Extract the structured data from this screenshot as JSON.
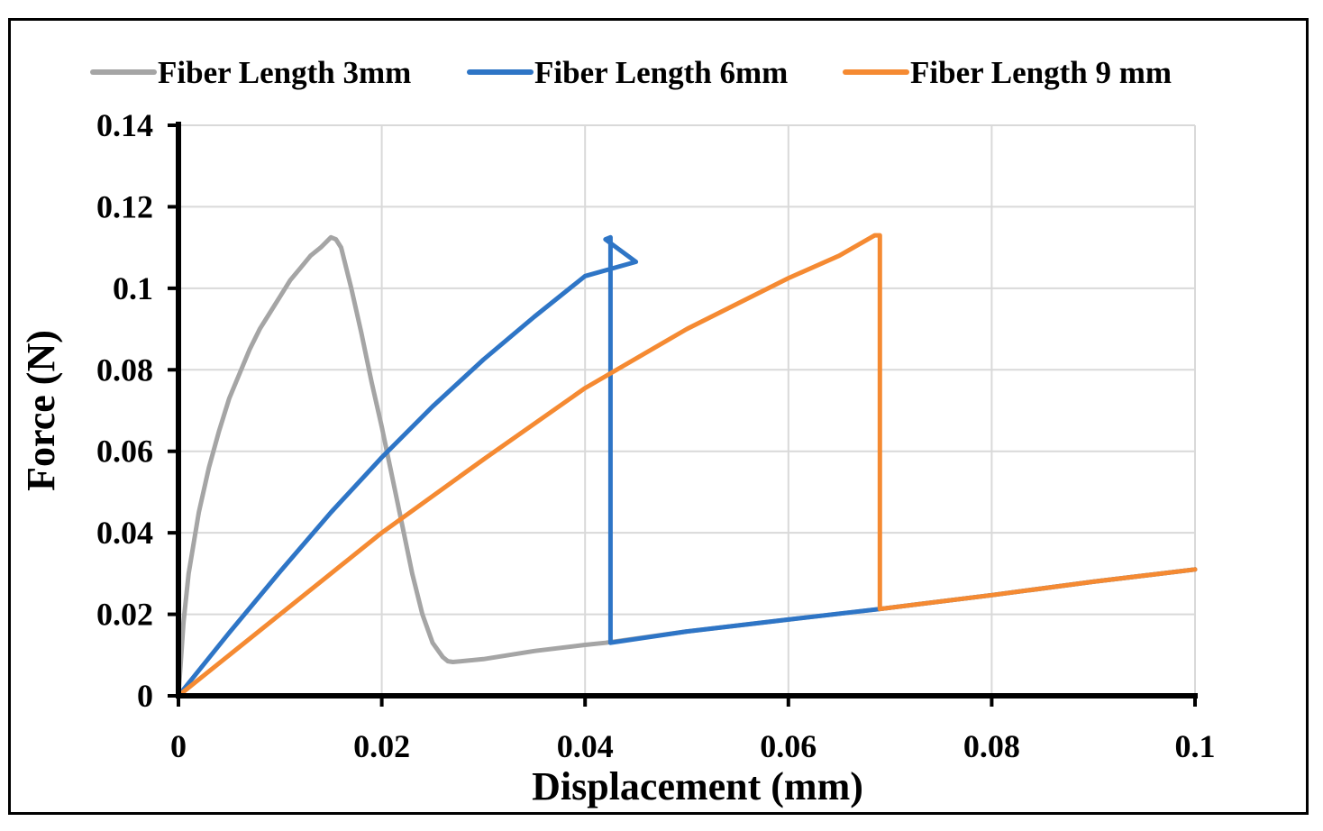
{
  "chart_data": {
    "type": "line",
    "title": "",
    "xlabel": "Displacement (mm)",
    "ylabel": "Force (N)",
    "xlim": [
      0,
      0.1
    ],
    "ylim": [
      0,
      0.14
    ],
    "xticks": [
      0,
      0.02,
      0.04,
      0.06,
      0.08,
      0.1
    ],
    "yticks": [
      0,
      0.02,
      0.04,
      0.06,
      0.08,
      0.1,
      0.12,
      0.14
    ],
    "xtick_labels": [
      "0",
      "0.02",
      "0.04",
      "0.06",
      "0.08",
      "0.1"
    ],
    "ytick_labels": [
      "0",
      "0.02",
      "0.04",
      "0.06",
      "0.08",
      "0.1",
      "0.12",
      "0.14"
    ],
    "grid": true,
    "legend_position": "top",
    "series": [
      {
        "name": "Fiber Length 3mm",
        "color": "#A5A5A5",
        "points": [
          [
            0,
            0
          ],
          [
            0.0005,
            0.018
          ],
          [
            0.001,
            0.03
          ],
          [
            0.002,
            0.045
          ],
          [
            0.003,
            0.056
          ],
          [
            0.004,
            0.065
          ],
          [
            0.005,
            0.073
          ],
          [
            0.006,
            0.079
          ],
          [
            0.007,
            0.085
          ],
          [
            0.008,
            0.09
          ],
          [
            0.009,
            0.094
          ],
          [
            0.01,
            0.098
          ],
          [
            0.011,
            0.102
          ],
          [
            0.012,
            0.105
          ],
          [
            0.013,
            0.108
          ],
          [
            0.014,
            0.11
          ],
          [
            0.015,
            0.1125
          ],
          [
            0.0155,
            0.112
          ],
          [
            0.016,
            0.11
          ],
          [
            0.017,
            0.1
          ],
          [
            0.018,
            0.089
          ],
          [
            0.019,
            0.077
          ],
          [
            0.02,
            0.066
          ],
          [
            0.021,
            0.054
          ],
          [
            0.022,
            0.042
          ],
          [
            0.023,
            0.03
          ],
          [
            0.024,
            0.02
          ],
          [
            0.025,
            0.013
          ],
          [
            0.026,
            0.0095
          ],
          [
            0.0265,
            0.0085
          ],
          [
            0.027,
            0.0083
          ],
          [
            0.03,
            0.009
          ],
          [
            0.035,
            0.011
          ],
          [
            0.04,
            0.0125
          ],
          [
            0.042,
            0.013
          ],
          [
            0.05,
            0.0158
          ],
          [
            0.06,
            0.0187
          ],
          [
            0.069,
            0.0213
          ],
          [
            0.08,
            0.0247
          ],
          [
            0.09,
            0.028
          ],
          [
            0.1,
            0.031
          ]
        ]
      },
      {
        "name": "Fiber Length 6mm",
        "color": "#2E75C6",
        "points": [
          [
            0,
            0
          ],
          [
            0.005,
            0.0155
          ],
          [
            0.01,
            0.0305
          ],
          [
            0.015,
            0.045
          ],
          [
            0.02,
            0.0585
          ],
          [
            0.025,
            0.071
          ],
          [
            0.03,
            0.0825
          ],
          [
            0.035,
            0.093
          ],
          [
            0.04,
            0.103
          ],
          [
            0.045,
            0.1065
          ],
          [
            0.042,
            0.112
          ],
          [
            0.042,
            0.112
          ],
          [
            0.0425,
            0.1125
          ],
          [
            0.0425,
            0.013
          ],
          [
            0.05,
            0.0158
          ],
          [
            0.06,
            0.0187
          ],
          [
            0.069,
            0.0213
          ],
          [
            0.08,
            0.0247
          ],
          [
            0.09,
            0.028
          ],
          [
            0.1,
            0.031
          ]
        ]
      },
      {
        "name": "Fiber Length 9 mm",
        "color": "#F58A32",
        "points": [
          [
            0,
            0
          ],
          [
            0.01,
            0.02
          ],
          [
            0.02,
            0.04
          ],
          [
            0.03,
            0.058
          ],
          [
            0.04,
            0.0755
          ],
          [
            0.05,
            0.09
          ],
          [
            0.06,
            0.1025
          ],
          [
            0.065,
            0.108
          ],
          [
            0.0685,
            0.113
          ],
          [
            0.069,
            0.113
          ],
          [
            0.069,
            0.0213
          ],
          [
            0.08,
            0.0247
          ],
          [
            0.09,
            0.028
          ],
          [
            0.1,
            0.031
          ]
        ]
      }
    ]
  }
}
